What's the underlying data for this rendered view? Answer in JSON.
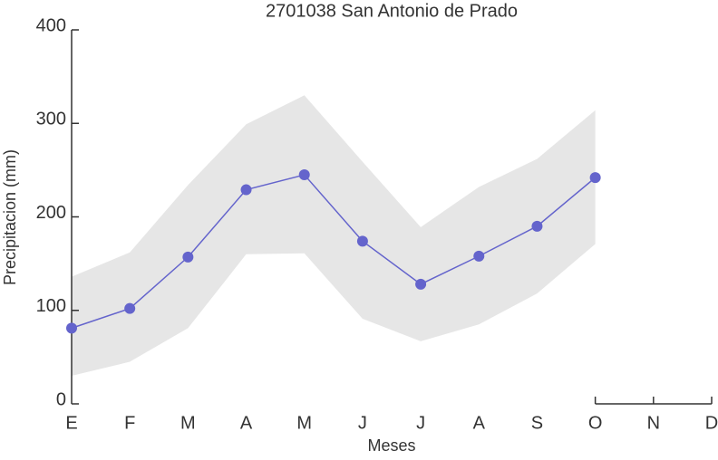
{
  "chart_data": {
    "type": "line",
    "title": "2701038 San Antonio de Prado",
    "xlabel": "Meses",
    "ylabel": "Precipitacion (mm)",
    "categories": [
      "E",
      "F",
      "M",
      "A",
      "M",
      "J",
      "J",
      "A",
      "S",
      "O",
      "N",
      "D"
    ],
    "values": [
      81,
      102,
      157,
      229,
      245,
      174,
      128,
      158,
      190,
      242,
      null,
      null
    ],
    "band_upper": [
      136,
      162,
      234,
      299,
      330,
      259,
      189,
      232,
      262,
      314,
      null,
      null
    ],
    "band_lower": [
      30,
      45,
      81,
      160,
      161,
      91,
      67,
      85,
      118,
      171,
      null,
      null
    ],
    "color": "#6464cc",
    "band_color": "#e6e6e6",
    "ylim": [
      0,
      400
    ],
    "yticks": [
      0,
      100,
      200,
      300,
      400
    ]
  }
}
